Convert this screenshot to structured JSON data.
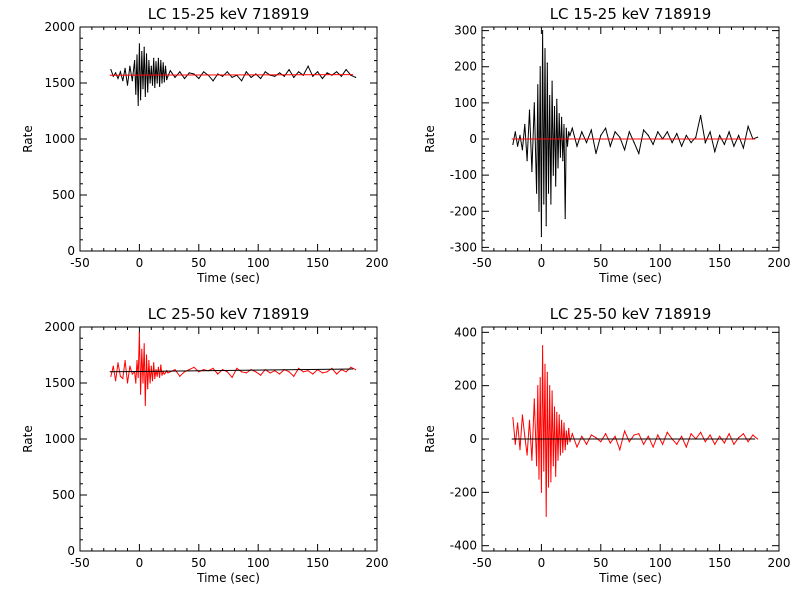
{
  "chart_data": [
    {
      "type": "line",
      "title": "LC 15-25 keV  718919",
      "xlabel": "Time (sec)",
      "ylabel": "Rate",
      "xlim": [
        -50,
        200
      ],
      "ylim": [
        0,
        2000
      ],
      "xticks": [
        -50,
        0,
        50,
        100,
        150,
        200
      ],
      "yticks": [
        0,
        500,
        1000,
        1500,
        2000
      ],
      "grid": false,
      "series": [
        {
          "role": "data",
          "color": "#000000",
          "x": [
            -24,
            -22,
            -20,
            -18,
            -16,
            -14,
            -12,
            -10,
            -8,
            -6,
            -4,
            -3,
            -2,
            -1,
            0,
            1,
            2,
            3,
            4,
            5,
            6,
            7,
            8,
            9,
            10,
            11,
            12,
            13,
            14,
            15,
            16,
            17,
            18,
            19,
            20,
            21,
            22,
            23,
            24,
            26,
            30,
            34,
            38,
            42,
            46,
            50,
            54,
            58,
            62,
            66,
            70,
            74,
            78,
            82,
            86,
            90,
            94,
            98,
            102,
            106,
            110,
            114,
            118,
            122,
            126,
            130,
            134,
            138,
            142,
            146,
            150,
            154,
            158,
            162,
            166,
            170,
            174,
            178,
            182
          ],
          "y": [
            1620,
            1560,
            1590,
            1540,
            1600,
            1520,
            1630,
            1480,
            1650,
            1520,
            1700,
            1400,
            1750,
            1300,
            1850,
            1350,
            1780,
            1450,
            1820,
            1380,
            1760,
            1420,
            1700,
            1500,
            1650,
            1480,
            1720,
            1460,
            1690,
            1500,
            1720,
            1470,
            1700,
            1500,
            1680,
            1510,
            1650,
            1530,
            1560,
            1610,
            1550,
            1600,
            1540,
            1590,
            1580,
            1540,
            1600,
            1570,
            1520,
            1580,
            1560,
            1600,
            1550,
            1570,
            1520,
            1600,
            1550,
            1580,
            1540,
            1600,
            1570,
            1560,
            1590,
            1560,
            1620,
            1550,
            1600,
            1570,
            1650,
            1560,
            1600,
            1540,
            1590,
            1570,
            1600,
            1560,
            1620,
            1570,
            1550
          ]
        },
        {
          "role": "model",
          "color": "#ff0000",
          "x": [
            -25,
            180
          ],
          "y": [
            1570,
            1575
          ]
        }
      ]
    },
    {
      "type": "line",
      "title": "LC 15-25 keV  718919",
      "xlabel": "Time (sec)",
      "ylabel": "Rate",
      "xlim": [
        -50,
        200
      ],
      "ylim": [
        -310,
        310
      ],
      "xticks": [
        -50,
        0,
        50,
        100,
        150,
        200
      ],
      "yticks": [
        -300,
        -200,
        -100,
        0,
        100,
        200,
        300
      ],
      "grid": false,
      "series": [
        {
          "role": "data",
          "color": "#000000",
          "x": [
            -24,
            -22,
            -20,
            -18,
            -16,
            -14,
            -12,
            -10,
            -8,
            -6,
            -4,
            -3,
            -2,
            -1,
            0,
            1,
            2,
            3,
            4,
            5,
            6,
            7,
            8,
            9,
            10,
            11,
            12,
            13,
            14,
            15,
            16,
            17,
            18,
            19,
            20,
            21,
            22,
            23,
            24,
            26,
            30,
            34,
            38,
            42,
            46,
            50,
            54,
            58,
            62,
            66,
            70,
            74,
            78,
            82,
            86,
            90,
            94,
            98,
            102,
            106,
            110,
            114,
            118,
            122,
            126,
            130,
            134,
            138,
            142,
            146,
            150,
            154,
            158,
            162,
            166,
            170,
            174,
            178,
            182
          ],
          "y": [
            -15,
            20,
            -20,
            10,
            -30,
            40,
            -60,
            80,
            -90,
            100,
            -150,
            150,
            -200,
            200,
            -270,
            300,
            -180,
            250,
            -240,
            210,
            -150,
            120,
            -180,
            160,
            -100,
            90,
            -130,
            110,
            -80,
            70,
            -50,
            60,
            -60,
            40,
            -220,
            30,
            -20,
            20,
            10,
            30,
            -20,
            20,
            -10,
            25,
            -40,
            10,
            30,
            -20,
            20,
            5,
            -30,
            20,
            -10,
            -40,
            25,
            10,
            -15,
            20,
            0,
            20,
            -10,
            15,
            -20,
            10,
            -10,
            5,
            65,
            -10,
            20,
            -35,
            10,
            -15,
            20,
            -20,
            10,
            -25,
            35,
            0,
            5
          ]
        },
        {
          "role": "model",
          "color": "#ff0000",
          "x": [
            -25,
            180
          ],
          "y": [
            0,
            0
          ]
        }
      ]
    },
    {
      "type": "line",
      "title": "LC 25-50 keV  718919",
      "xlabel": "Time (sec)",
      "ylabel": "Rate",
      "xlim": [
        -50,
        200
      ],
      "ylim": [
        0,
        2000
      ],
      "xticks": [
        -50,
        0,
        50,
        100,
        150,
        200
      ],
      "yticks": [
        0,
        500,
        1000,
        1500,
        2000
      ],
      "grid": false,
      "series": [
        {
          "role": "data",
          "color": "#ff0000",
          "x": [
            -24,
            -22,
            -20,
            -18,
            -16,
            -14,
            -12,
            -10,
            -8,
            -6,
            -4,
            -3,
            -2,
            -1,
            0,
            1,
            2,
            3,
            4,
            5,
            6,
            7,
            8,
            9,
            10,
            11,
            12,
            13,
            14,
            15,
            16,
            17,
            18,
            19,
            20,
            21,
            22,
            23,
            24,
            26,
            30,
            34,
            38,
            42,
            46,
            50,
            54,
            58,
            62,
            66,
            70,
            74,
            78,
            82,
            86,
            90,
            94,
            98,
            102,
            106,
            110,
            114,
            118,
            122,
            126,
            130,
            134,
            138,
            142,
            146,
            150,
            154,
            158,
            162,
            166,
            170,
            174,
            178,
            182
          ],
          "y": [
            1560,
            1650,
            1520,
            1680,
            1560,
            1540,
            1700,
            1500,
            1650,
            1580,
            1600,
            1500,
            1700,
            1550,
            1950,
            1400,
            1800,
            1500,
            1850,
            1300,
            1750,
            1450,
            1700,
            1500,
            1650,
            1520,
            1680,
            1540,
            1620,
            1560,
            1640,
            1550,
            1660,
            1570,
            1600,
            1580,
            1590,
            1610,
            1590,
            1600,
            1620,
            1560,
            1600,
            1620,
            1640,
            1600,
            1620,
            1610,
            1630,
            1580,
            1620,
            1600,
            1550,
            1630,
            1600,
            1590,
            1620,
            1600,
            1570,
            1620,
            1590,
            1610,
            1580,
            1620,
            1600,
            1560,
            1630,
            1600,
            1610,
            1580,
            1620,
            1590,
            1600,
            1630,
            1580,
            1620,
            1600,
            1640,
            1620
          ]
        },
        {
          "role": "model",
          "color": "#000000",
          "x": [
            -25,
            180
          ],
          "y": [
            1600,
            1625
          ]
        }
      ]
    },
    {
      "type": "line",
      "title": "LC 25-50 keV  718919",
      "xlabel": "Time (sec)",
      "ylabel": "Rate",
      "xlim": [
        -50,
        200
      ],
      "ylim": [
        -420,
        420
      ],
      "xticks": [
        -50,
        0,
        50,
        100,
        150,
        200
      ],
      "yticks": [
        -400,
        -200,
        0,
        200,
        400
      ],
      "grid": false,
      "series": [
        {
          "role": "data",
          "color": "#ff0000",
          "x": [
            -24,
            -22,
            -20,
            -18,
            -16,
            -14,
            -12,
            -10,
            -8,
            -6,
            -4,
            -3,
            -2,
            -1,
            0,
            1,
            2,
            3,
            4,
            5,
            6,
            7,
            8,
            9,
            10,
            11,
            12,
            13,
            14,
            15,
            16,
            17,
            18,
            19,
            20,
            21,
            22,
            23,
            24,
            26,
            30,
            34,
            38,
            42,
            46,
            50,
            54,
            58,
            62,
            66,
            70,
            74,
            78,
            82,
            86,
            90,
            94,
            98,
            102,
            106,
            110,
            114,
            118,
            122,
            126,
            130,
            134,
            138,
            142,
            146,
            150,
            154,
            158,
            162,
            166,
            170,
            174,
            178,
            182
          ],
          "y": [
            80,
            -20,
            60,
            -40,
            90,
            10,
            -60,
            70,
            -80,
            150,
            -100,
            200,
            -150,
            230,
            -200,
            350,
            -120,
            280,
            -290,
            250,
            -180,
            200,
            -160,
            180,
            -100,
            120,
            -140,
            100,
            -80,
            90,
            -60,
            70,
            -50,
            60,
            -40,
            30,
            -20,
            40,
            -10,
            20,
            -30,
            10,
            -20,
            15,
            5,
            -10,
            20,
            -15,
            10,
            -40,
            30,
            -10,
            15,
            20,
            -20,
            10,
            -30,
            15,
            -20,
            25,
            0,
            -20,
            10,
            -30,
            20,
            0,
            25,
            -10,
            15,
            -20,
            10,
            -15,
            20,
            -20,
            5,
            20,
            -10,
            15,
            0
          ]
        },
        {
          "role": "model",
          "color": "#000000",
          "x": [
            -25,
            180
          ],
          "y": [
            0,
            0
          ]
        }
      ]
    }
  ]
}
